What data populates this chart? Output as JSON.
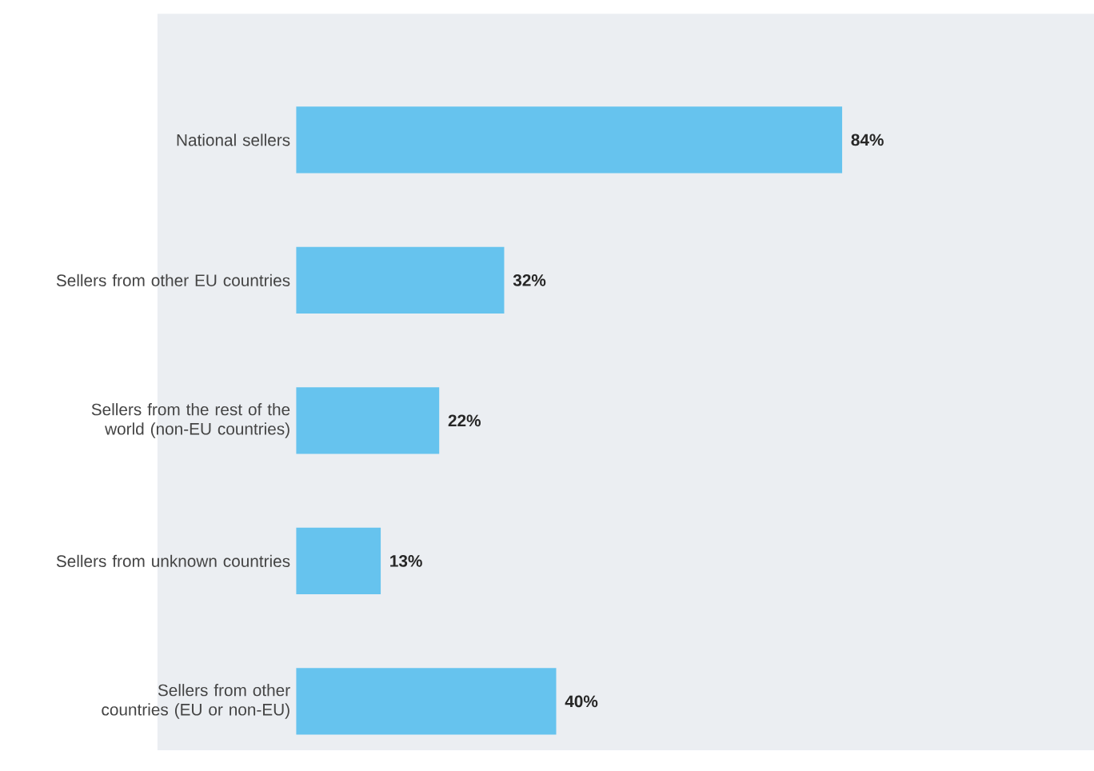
{
  "chart_data": {
    "type": "bar",
    "orientation": "horizontal",
    "categories": [
      "National sellers",
      "Sellers from other EU countries",
      "Sellers from the rest of the world (non-EU countries)",
      "Sellers from unknown countries",
      "Sellers from other countries (EU or non-EU)"
    ],
    "values": [
      84,
      32,
      22,
      13,
      40
    ],
    "value_labels": [
      "84%",
      "32%",
      "22%",
      "13%",
      "40%"
    ],
    "color": "#66c3ee"
  }
}
